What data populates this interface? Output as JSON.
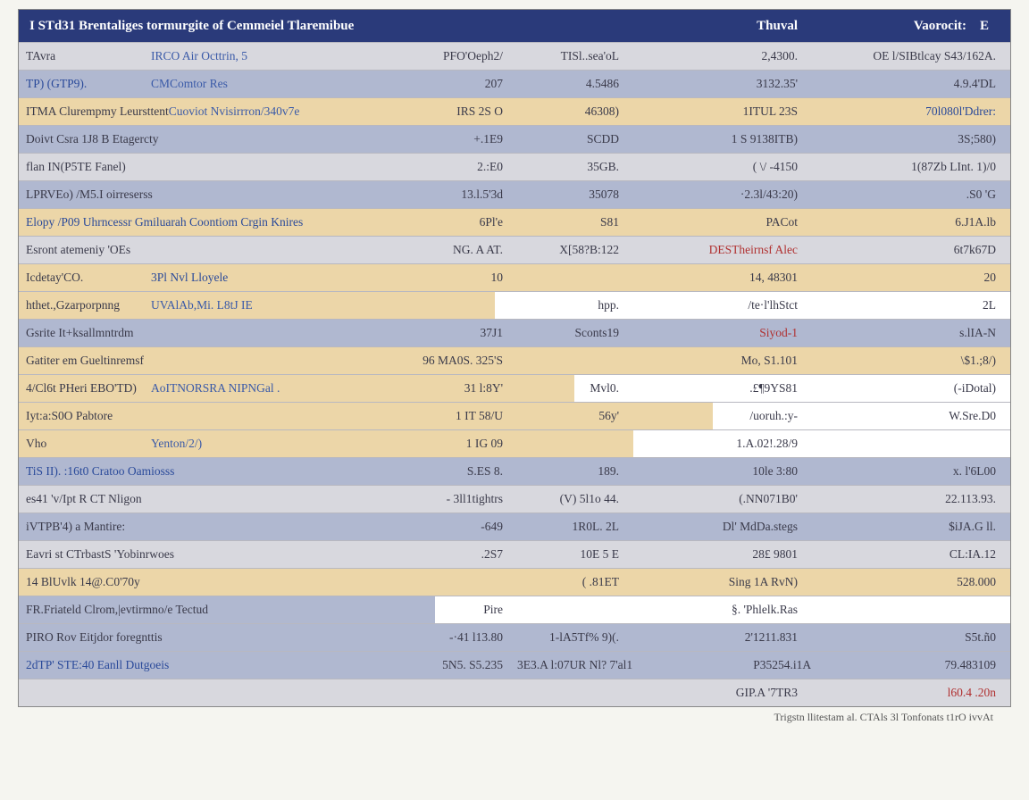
{
  "colors": {
    "header_bg": "#2a3a7a",
    "header_fg": "#ffffff",
    "band_tan": "#ecd6a8",
    "band_blue": "#b0b8d0",
    "band_grey": "#d8d8de",
    "text_main": "#3a3a4a",
    "text_blue": "#2a4a9a",
    "text_red": "#b03030",
    "border": "#b8b8c0"
  },
  "header": {
    "title": "I STd31 Brentaliges tormurgite of Cemmeiel Tlaremibue",
    "col3": "Thuval",
    "col4": "Vaorocit:",
    "col5": "E"
  },
  "footer": "Trigstn llitestam al. CTAls 3l Tonfonats  t1rO ivvAt",
  "rows": [
    {
      "bg": "band_grey",
      "bg_w": 100,
      "c0a": "TAvra",
      "c0b": "IRCO Air Octtrin, 5",
      "c1": "PFO'Oeph2/",
      "c2": "TISl..sea'oL",
      "c3": "2,4300.",
      "c4": "OE l/SIBtlcay S43/162A."
    },
    {
      "bg": "band_blue",
      "bg_w": 100,
      "c0a": "TP) (GTP9).",
      "c0b": "CMComtor Res",
      "c1": "207",
      "c2": "4.5486",
      "c3": "3132.35'",
      "c4": "4.9.4'DL",
      "c0_class": "txt-blue"
    },
    {
      "bg": "band_tan",
      "bg_w": 100,
      "c0a": "ITMA Clurempmy Leursttent",
      "c0b": "Cuoviot Nvisirrron/340v7e",
      "c1": "IRS 2S O",
      "c2": "46308)",
      "c3": "1ITUL 23S",
      "c4": "70l080l'Ddrer:",
      "c4_class": "txt-blue"
    },
    {
      "bg": "band_blue",
      "bg_w": 100,
      "c0a": "Doivt Csra   1J8 B Etagercty",
      "c0b": "",
      "c1": "+.1E9",
      "c2": "SCDD",
      "c3": "1 S 9138ITB)",
      "c4": "3S;580)"
    },
    {
      "bg": "band_grey",
      "bg_w": 100,
      "c0a": "flan IN(P5TE Fanel)",
      "c0b": "",
      "c1": "2.:E0",
      "c2": "35GB.",
      "c3": "( \\/ -4150",
      "c4": "1(87Zb  LInt.  1)/0"
    },
    {
      "bg": "band_blue",
      "bg_w": 100,
      "c0a": "LPRVEo) /M5.I oirreserss",
      "c0b": "",
      "c1": "13.l.5'3d",
      "c2": "35078",
      "c3": "·2.3l/43:20)",
      "c4": ".S0 'G"
    },
    {
      "bg": "band_tan",
      "bg_w": 100,
      "c0a": "Elopy /P09 Uhrncessr Gmiluarah Coontiom Crgin Knires",
      "c0b": "",
      "c1": "6Pl'e",
      "c2": "S81",
      "c3": "PACot",
      "c4": "6.J1A.lb",
      "c0_class": "txt-blue"
    },
    {
      "bg": "band_grey",
      "bg_w": 100,
      "c0a": "Esront atemeniy 'OEs",
      "c0b": "",
      "c1": "NG.           A AT.",
      "c2": "X[58?B:122",
      "c3": "DESTheirnsf Alec",
      "c4": "6t7k67D",
      "c3_class": "txt-red"
    },
    {
      "bg": "band_tan",
      "bg_w": 100,
      "c0a": "Icdetay'CO.",
      "c0b": "3Pl Nvl Lloyele",
      "c1": "10",
      "c2": "",
      "c3": "14, 48301",
      "c4": "20",
      "c0b_class": "txt-blue"
    },
    {
      "bg": "band_tan",
      "bg_w": 48,
      "c0a": "hthet.,Gzarporpnng",
      "c0b": "UVAlAb,Mi.  L8tJ IE",
      "c1": "",
      "c2": "hpp.",
      "c3": "/te·l'lhStct",
      "c4": "2L"
    },
    {
      "bg": "band_blue",
      "bg_w": 100,
      "c0a": "Gsrite It+ksallmntrdm",
      "c0b": "",
      "c1": "37J1",
      "c2": "Sconts19",
      "c3": "Siyod-1",
      "c4": "s.lIA-N",
      "c3_class": "txt-red"
    },
    {
      "bg": "band_tan",
      "bg_w": 100,
      "c0a": "Gatiter em Gueltinremsf",
      "c0b": "",
      "c1": "96       MA0S. 325'S",
      "c2": "",
      "c3": "Mo, S1.101",
      "c4": "\\$1.;8/)"
    },
    {
      "bg": "band_tan",
      "bg_w": 56,
      "c0a": "4/Cl6t PHeri EBO'TD)",
      "c0b": "AoITNORSRA NIPNGal .",
      "c1": "31 l:8Y'",
      "c2": "Mvl0.",
      "c3": ".£¶9YS81",
      "c4": "(-iDotal)"
    },
    {
      "bg": "band_tan",
      "bg_w": 70,
      "c0a": "Iyt:a:S0O Pabtore",
      "c0b": "",
      "c1": "1 IT        58/U",
      "c2": "56y'",
      "c3": "/uoruh.:y-",
      "c4": "W.Sre.D0"
    },
    {
      "bg": "band_tan",
      "bg_w": 62,
      "c0a": "Vho",
      "c0b": "Yenton/2/)",
      "c1": "1 IG           09",
      "c2": "",
      "c3": "1.A.02!.28/9",
      "c4": ""
    },
    {
      "bg": "band_blue",
      "bg_w": 100,
      "c0a": "TiS II). :16t0 Cratoo Oamiosss",
      "c0b": "",
      "c1": "S.ES              8.",
      "c2": "189.",
      "c3": "10le 3:80",
      "c4": "x. l'6L00",
      "c0_class": "txt-blue"
    },
    {
      "bg": "band_grey",
      "bg_w": 100,
      "c0a": "es41   'v/Ipt R CT Nligon",
      "c0b": "",
      "c1": "- 3ll1tightrs",
      "c2": "(V)   5l1o          44.",
      "c3": "(.NN071B0'",
      "c4": "22.113.93."
    },
    {
      "bg": "band_blue",
      "bg_w": 100,
      "c0a": "iVTPB'4)  a Mantire:",
      "c0b": "",
      "c1": "-649",
      "c2": "1R0L.         2L",
      "c3": "Dl'  MdDa.stegs",
      "c4": "$iJA.G ll."
    },
    {
      "bg": "band_grey",
      "bg_w": 100,
      "c0a": "Eavri st CTrbastS 'Yobinrwoes",
      "c0b": "",
      "c1": ".2S7",
      "c2": "10E           5 E",
      "c3": "28£ 9801",
      "c4": "CL:IA.12"
    },
    {
      "bg": "band_tan",
      "bg_w": 100,
      "c0a": "14 BlUvlk   14@.C0'70y",
      "c0b": "",
      "c1": "",
      "c2": "( .81ET",
      "c3": "Sing  1A RvN)",
      "c4": "528.000"
    },
    {
      "bg": "band_blue",
      "bg_w": 42,
      "c0a": "FR.Friateld Clrom,|evtirmno/e Tectud",
      "c0b": "",
      "c1": "Pire",
      "c2": "",
      "c3": "§. 'Phlelk.Ras",
      "c4": ""
    },
    {
      "bg": "band_blue",
      "bg_w": 100,
      "c0a": "PIRO Rov Eitjdor foregnttis",
      "c0b": "",
      "c1": "-·41 l13.80",
      "c2": "1-lA5Tf%           9)(.",
      "c3": "2'1211.831",
      "c4": "S5t.ñ0"
    },
    {
      "bg": "band_blue",
      "bg_w": 100,
      "c0a": "2dTP' STE:40 Eanll Dutgoeis",
      "c0b": "",
      "c1": "5N5. S5.235",
      "c2": "3E3.A l:07UR    Nl?  7'al1",
      "c3": "P35254.i1A",
      "c4": "79.483109",
      "c0_class": "txt-blue"
    },
    {
      "bg": "band_grey",
      "bg_w": 100,
      "c0a": "",
      "c0b": "",
      "c1": "",
      "c2": "",
      "c3": "GIP.A '7TR3",
      "c4": "l60.4 .20n",
      "c4_class": "txt-red"
    }
  ]
}
